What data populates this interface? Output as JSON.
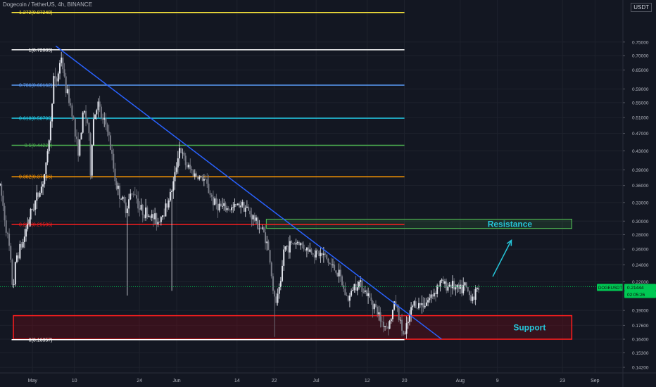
{
  "header": {
    "fib_top_label": "1.272(0.87248)",
    "symbol_text": "Dogecoin / TetherUS, 4h, BINANCE",
    "currency": "USDT"
  },
  "colors": {
    "background": "#131722",
    "bull": "#e0e3eb",
    "bear": "#787b86",
    "trendline": "#2962ff",
    "resistance": "#4caf50",
    "support": "#ff1e1e",
    "arrow": "#26c6da",
    "last_price_bg": "#00c853"
  },
  "chart_data": {
    "type": "candlestick",
    "symbol": "DOGEUSDT",
    "timeframe": "4h",
    "exchange": "BINANCE",
    "ylim": [
      0.138,
      0.93
    ],
    "y_scale": "log",
    "y_ticks": [
      {
        "value": 0.75,
        "label": "0.75000"
      },
      {
        "value": 0.7,
        "label": "0.70000"
      },
      {
        "value": 0.65,
        "label": "0.65000"
      },
      {
        "value": 0.59,
        "label": "0.59000"
      },
      {
        "value": 0.55,
        "label": "0.55000"
      },
      {
        "value": 0.51,
        "label": "0.51000"
      },
      {
        "value": 0.47,
        "label": "0.47000"
      },
      {
        "value": 0.43,
        "label": "0.43000"
      },
      {
        "value": 0.39,
        "label": "0.39000"
      },
      {
        "value": 0.36,
        "label": "0.36000"
      },
      {
        "value": 0.33,
        "label": "0.33000"
      },
      {
        "value": 0.3,
        "label": "0.30000"
      },
      {
        "value": 0.28,
        "label": "0.28000"
      },
      {
        "value": 0.26,
        "label": "0.26000"
      },
      {
        "value": 0.24,
        "label": "0.24000"
      },
      {
        "value": 0.22,
        "label": "0.22000"
      },
      {
        "value": 0.19,
        "label": "0.19000"
      },
      {
        "value": 0.176,
        "label": "0.17600"
      },
      {
        "value": 0.164,
        "label": "0.16400"
      },
      {
        "value": 0.153,
        "label": "0.15300"
      },
      {
        "value": 0.142,
        "label": "0.14200"
      }
    ],
    "x_ticks": [
      {
        "day": 0,
        "label": "May"
      },
      {
        "day": 9,
        "label": "10"
      },
      {
        "day": 23,
        "label": "24"
      },
      {
        "day": 31,
        "label": "Jun"
      },
      {
        "day": 44,
        "label": "14"
      },
      {
        "day": 52,
        "label": "22"
      },
      {
        "day": 61,
        "label": "Jul"
      },
      {
        "day": 72,
        "label": "12"
      },
      {
        "day": 80,
        "label": "20"
      },
      {
        "day": 92,
        "label": "Aug"
      },
      {
        "day": 100,
        "label": "9"
      },
      {
        "day": 114,
        "label": "23"
      },
      {
        "day": 121,
        "label": "Sep"
      }
    ],
    "x_domain_days": [
      -7,
      127
    ],
    "fib_levels": [
      {
        "ratio": "1.272",
        "value": 0.87248,
        "label": "1.272(0.87248)",
        "color": "#ffeb3b"
      },
      {
        "ratio": "1",
        "value": 0.72089,
        "label": "1(0.72089)",
        "color": "#ffffff"
      },
      {
        "ratio": "0.786",
        "value": 0.60162,
        "label": "0.786(0.60162)",
        "color": "#5b9cf6"
      },
      {
        "ratio": "0.618",
        "value": 0.50799,
        "label": "0.618(0.50799)",
        "color": "#22d1ee"
      },
      {
        "ratio": "0.5",
        "value": 0.44223,
        "label": "0.5(0.44223)",
        "color": "#4caf50"
      },
      {
        "ratio": "0.382",
        "value": 0.37646,
        "label": "0.382(0.37646)",
        "color": "#ff9800"
      },
      {
        "ratio": "0.236",
        "value": 0.29506,
        "label": "0.236(0.29506)",
        "color": "#ff1e1e"
      },
      {
        "ratio": "0",
        "value": 0.16357,
        "label": "0(0.16357)",
        "color": "#ffffff"
      }
    ],
    "trendline": {
      "x1": 5,
      "y1": 0.735,
      "x2": 88,
      "y2": 0.164
    },
    "resistance_zone": {
      "x1": 50,
      "x2": 116,
      "y_low": 0.289,
      "y_high": 0.303,
      "label": "Resistance"
    },
    "support_zone": {
      "x1": -7,
      "x2": 116,
      "y_low": 0.164,
      "y_high": 0.185,
      "label": "Support"
    },
    "arrow": {
      "x1": 99,
      "y1": 0.226,
      "x2": 103,
      "y2": 0.272
    },
    "last_price": {
      "value": 0.21444,
      "label": "0.21444",
      "symbol_tag": "DOGEUSDT",
      "countdown": "02:05:26"
    },
    "path_anchors": [
      [
        -7,
        0.36
      ],
      [
        -5,
        0.26
      ],
      [
        -4.2,
        0.21
      ],
      [
        -3.5,
        0.25
      ],
      [
        -2,
        0.27
      ],
      [
        -1,
        0.3
      ],
      [
        0.5,
        0.33
      ],
      [
        2,
        0.36
      ],
      [
        3,
        0.4
      ],
      [
        4,
        0.51
      ],
      [
        4.5,
        0.63
      ],
      [
        5,
        0.6
      ],
      [
        6.2,
        0.7
      ],
      [
        7,
        0.6
      ],
      [
        8,
        0.55
      ],
      [
        8.7,
        0.52
      ],
      [
        9.3,
        0.45
      ],
      [
        10,
        0.43
      ],
      [
        11,
        0.53
      ],
      [
        12,
        0.49
      ],
      [
        12.5,
        0.38
      ],
      [
        13,
        0.5
      ],
      [
        14,
        0.55
      ],
      [
        15,
        0.5
      ],
      [
        16,
        0.49
      ],
      [
        17,
        0.42
      ],
      [
        18,
        0.36
      ],
      [
        19,
        0.34
      ],
      [
        20,
        0.32
      ],
      [
        21,
        0.34
      ],
      [
        22,
        0.35
      ],
      [
        23,
        0.32
      ],
      [
        25,
        0.31
      ],
      [
        27,
        0.3
      ],
      [
        28.5,
        0.32
      ],
      [
        29.5,
        0.34
      ],
      [
        30.5,
        0.37
      ],
      [
        31.5,
        0.44
      ],
      [
        33,
        0.4
      ],
      [
        35,
        0.38
      ],
      [
        37,
        0.37
      ],
      [
        39,
        0.33
      ],
      [
        41,
        0.32
      ],
      [
        43,
        0.32
      ],
      [
        45,
        0.33
      ],
      [
        47,
        0.31
      ],
      [
        49,
        0.29
      ],
      [
        50,
        0.28
      ],
      [
        51,
        0.25
      ],
      [
        52,
        0.2
      ],
      [
        52.5,
        0.198
      ],
      [
        53.5,
        0.22
      ],
      [
        54,
        0.26
      ],
      [
        55,
        0.265
      ],
      [
        57,
        0.27
      ],
      [
        59,
        0.26
      ],
      [
        61,
        0.255
      ],
      [
        63,
        0.25
      ],
      [
        64,
        0.24
      ],
      [
        65,
        0.235
      ],
      [
        66,
        0.227
      ],
      [
        67,
        0.21
      ],
      [
        68,
        0.2
      ],
      [
        69,
        0.215
      ],
      [
        70,
        0.22
      ],
      [
        71,
        0.215
      ],
      [
        72,
        0.205
      ],
      [
        73,
        0.2
      ],
      [
        74,
        0.19
      ],
      [
        75,
        0.18
      ],
      [
        76,
        0.175
      ],
      [
        77,
        0.18
      ],
      [
        78,
        0.2
      ],
      [
        79,
        0.18
      ],
      [
        80,
        0.165
      ],
      [
        81,
        0.183
      ],
      [
        82,
        0.198
      ],
      [
        83,
        0.195
      ],
      [
        84,
        0.197
      ],
      [
        85,
        0.2
      ],
      [
        86,
        0.205
      ],
      [
        87,
        0.215
      ],
      [
        88,
        0.22
      ],
      [
        89,
        0.215
      ],
      [
        90,
        0.218
      ],
      [
        91,
        0.212
      ],
      [
        92,
        0.21
      ],
      [
        93,
        0.215
      ],
      [
        94,
        0.205
      ],
      [
        95,
        0.205
      ],
      [
        96,
        0.214
      ]
    ]
  }
}
